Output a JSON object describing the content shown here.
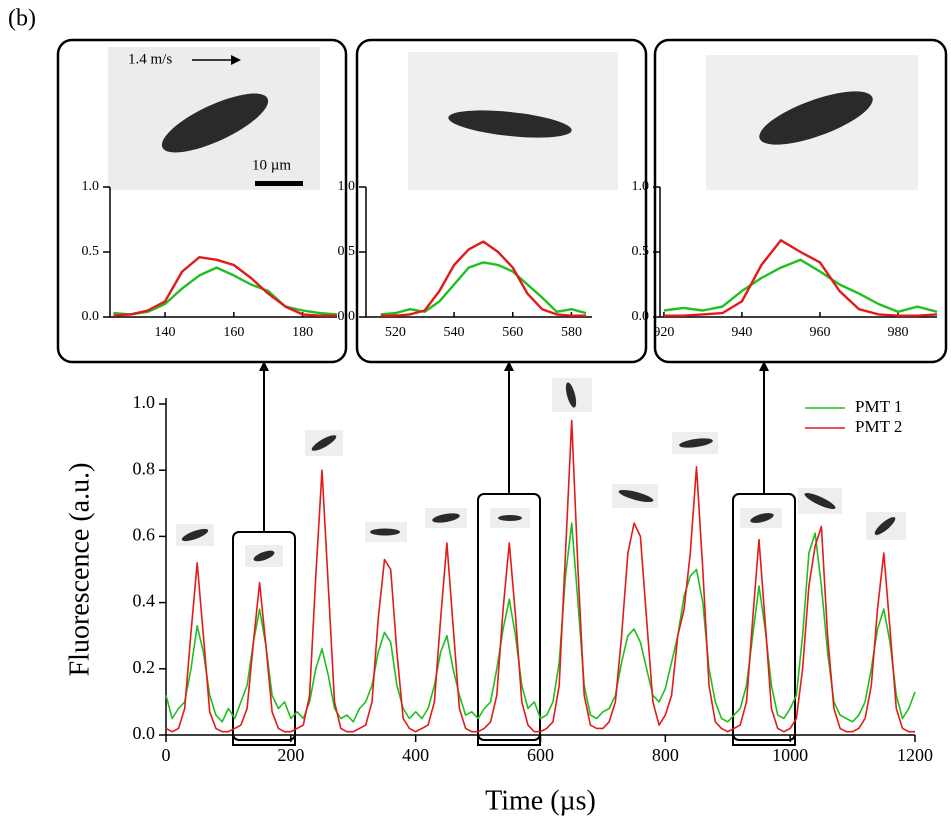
{
  "panel_label": "(b)",
  "chart_data": [
    {
      "type": "line",
      "x_label": "Time (µs)",
      "y_label": "Fluorescence (a.u.)",
      "xlim": [
        0,
        1200
      ],
      "xticks": [
        0,
        200,
        400,
        600,
        800,
        1000,
        1200
      ],
      "ylim": [
        0,
        1.0
      ],
      "yticks": [
        {
          "value": 0,
          "label": "0.0"
        },
        {
          "value": 0.2,
          "label": "0.2"
        },
        {
          "value": 0.4,
          "label": "0.4"
        },
        {
          "value": 0.6,
          "label": "0.6"
        },
        {
          "value": 0.8,
          "label": "0.8"
        },
        {
          "value": 1.0,
          "label": "1.0"
        }
      ],
      "legend": "upper right",
      "x": [
        0,
        10,
        20,
        30,
        40,
        50,
        60,
        70,
        80,
        90,
        100,
        110,
        120,
        130,
        140,
        150,
        160,
        170,
        180,
        190,
        200,
        210,
        220,
        230,
        240,
        250,
        260,
        270,
        280,
        290,
        300,
        310,
        320,
        330,
        340,
        350,
        360,
        370,
        380,
        390,
        400,
        410,
        420,
        430,
        440,
        450,
        460,
        470,
        480,
        490,
        500,
        510,
        520,
        530,
        540,
        550,
        560,
        570,
        580,
        590,
        600,
        610,
        620,
        630,
        640,
        650,
        660,
        670,
        680,
        690,
        700,
        710,
        720,
        730,
        740,
        750,
        760,
        770,
        780,
        790,
        800,
        810,
        820,
        830,
        840,
        850,
        860,
        870,
        880,
        890,
        900,
        910,
        920,
        930,
        940,
        950,
        960,
        970,
        980,
        990,
        1000,
        1010,
        1020,
        1030,
        1040,
        1050,
        1060,
        1070,
        1080,
        1090,
        1100,
        1110,
        1120,
        1130,
        1140,
        1150,
        1160,
        1170,
        1180,
        1190,
        1200
      ],
      "series": [
        {
          "name": "PMT 1",
          "color": "#1fbf1f",
          "values": [
            0.12,
            0.05,
            0.08,
            0.1,
            0.2,
            0.33,
            0.25,
            0.12,
            0.06,
            0.04,
            0.08,
            0.05,
            0.1,
            0.15,
            0.28,
            0.38,
            0.27,
            0.12,
            0.08,
            0.1,
            0.05,
            0.07,
            0.05,
            0.1,
            0.2,
            0.26,
            0.18,
            0.08,
            0.05,
            0.06,
            0.04,
            0.08,
            0.1,
            0.15,
            0.25,
            0.31,
            0.28,
            0.15,
            0.08,
            0.05,
            0.07,
            0.05,
            0.08,
            0.15,
            0.25,
            0.3,
            0.2,
            0.12,
            0.06,
            0.07,
            0.05,
            0.08,
            0.1,
            0.2,
            0.32,
            0.41,
            0.3,
            0.15,
            0.08,
            0.1,
            0.05,
            0.06,
            0.1,
            0.22,
            0.48,
            0.64,
            0.4,
            0.15,
            0.06,
            0.05,
            0.07,
            0.08,
            0.12,
            0.22,
            0.3,
            0.32,
            0.28,
            0.2,
            0.12,
            0.1,
            0.14,
            0.22,
            0.3,
            0.42,
            0.48,
            0.5,
            0.4,
            0.2,
            0.1,
            0.05,
            0.04,
            0.06,
            0.08,
            0.15,
            0.3,
            0.45,
            0.32,
            0.15,
            0.06,
            0.05,
            0.08,
            0.12,
            0.3,
            0.55,
            0.61,
            0.45,
            0.25,
            0.1,
            0.06,
            0.05,
            0.04,
            0.06,
            0.1,
            0.2,
            0.32,
            0.38,
            0.28,
            0.12,
            0.05,
            0.08,
            0.13
          ]
        },
        {
          "name": "PMT 2",
          "color": "#e31a1a",
          "values": [
            0.02,
            0.01,
            0.02,
            0.08,
            0.31,
            0.52,
            0.3,
            0.07,
            0.02,
            0.01,
            0.01,
            0.02,
            0.03,
            0.08,
            0.28,
            0.46,
            0.27,
            0.07,
            0.02,
            0.01,
            0.01,
            0.02,
            0.03,
            0.12,
            0.48,
            0.8,
            0.45,
            0.1,
            0.02,
            0.01,
            0.01,
            0.02,
            0.03,
            0.1,
            0.35,
            0.53,
            0.5,
            0.25,
            0.05,
            0.02,
            0.01,
            0.02,
            0.03,
            0.1,
            0.35,
            0.58,
            0.33,
            0.08,
            0.02,
            0.01,
            0.01,
            0.02,
            0.04,
            0.12,
            0.38,
            0.58,
            0.36,
            0.1,
            0.03,
            0.01,
            0.01,
            0.02,
            0.04,
            0.15,
            0.55,
            0.95,
            0.5,
            0.12,
            0.03,
            0.02,
            0.02,
            0.04,
            0.1,
            0.3,
            0.55,
            0.64,
            0.6,
            0.35,
            0.1,
            0.03,
            0.06,
            0.12,
            0.3,
            0.38,
            0.55,
            0.81,
            0.5,
            0.15,
            0.04,
            0.02,
            0.01,
            0.02,
            0.03,
            0.1,
            0.35,
            0.59,
            0.34,
            0.08,
            0.02,
            0.01,
            0.02,
            0.05,
            0.2,
            0.45,
            0.57,
            0.63,
            0.3,
            0.08,
            0.02,
            0.01,
            0.01,
            0.02,
            0.05,
            0.15,
            0.38,
            0.55,
            0.32,
            0.08,
            0.02,
            0.01,
            0.01
          ]
        }
      ]
    },
    {
      "type": "line",
      "annotations": [
        "1.4 m/s",
        "10 µm"
      ],
      "xlim": [
        124,
        190
      ],
      "xticks": [
        140,
        160,
        180
      ],
      "ylim": [
        0,
        1.0
      ],
      "yticks": [
        {
          "value": 0,
          "label": "0.0"
        },
        {
          "value": 0.5,
          "label": "0.5"
        },
        {
          "value": 1.0,
          "label": "1.0"
        }
      ],
      "x": [
        125,
        130,
        135,
        140,
        145,
        150,
        155,
        160,
        165,
        170,
        175,
        180,
        185,
        190
      ],
      "series": [
        {
          "color": "#1fbf1f",
          "values": [
            0.03,
            0.02,
            0.04,
            0.1,
            0.22,
            0.32,
            0.38,
            0.32,
            0.25,
            0.2,
            0.08,
            0.05,
            0.03,
            0.02
          ]
        },
        {
          "color": "#e31a1a",
          "values": [
            0.01,
            0.02,
            0.05,
            0.12,
            0.35,
            0.46,
            0.44,
            0.4,
            0.3,
            0.18,
            0.08,
            0.02,
            0.01,
            0.01
          ]
        }
      ]
    },
    {
      "type": "line",
      "xlim": [
        510,
        587
      ],
      "xticks": [
        520,
        540,
        560,
        580
      ],
      "ylim": [
        0,
        1.0
      ],
      "yticks": [
        {
          "value": 0,
          "label": "0.0"
        },
        {
          "value": 0.5,
          "label": "0.5"
        },
        {
          "value": 1.0,
          "label": "1.0"
        }
      ],
      "x": [
        515,
        520,
        525,
        530,
        535,
        540,
        545,
        550,
        555,
        560,
        565,
        570,
        575,
        580,
        585
      ],
      "series": [
        {
          "color": "#1fbf1f",
          "values": [
            0.02,
            0.03,
            0.06,
            0.04,
            0.12,
            0.25,
            0.38,
            0.42,
            0.4,
            0.35,
            0.25,
            0.15,
            0.04,
            0.06,
            0.03
          ]
        },
        {
          "color": "#e31a1a",
          "values": [
            0.01,
            0.01,
            0.02,
            0.05,
            0.2,
            0.4,
            0.52,
            0.58,
            0.5,
            0.38,
            0.18,
            0.06,
            0.02,
            0.01,
            0.01
          ]
        }
      ]
    },
    {
      "type": "line",
      "xlim": [
        919,
        990
      ],
      "xticks": [
        920,
        940,
        960,
        980
      ],
      "ylim": [
        0,
        1.0
      ],
      "yticks": [
        {
          "value": 0,
          "label": "0.0"
        },
        {
          "value": 0.5,
          "label": "0.5"
        },
        {
          "value": 1.0,
          "label": "1.0"
        }
      ],
      "x": [
        920,
        925,
        930,
        935,
        940,
        945,
        950,
        955,
        960,
        965,
        970,
        975,
        980,
        985,
        990
      ],
      "series": [
        {
          "color": "#1fbf1f",
          "values": [
            0.05,
            0.07,
            0.05,
            0.08,
            0.2,
            0.3,
            0.38,
            0.44,
            0.35,
            0.25,
            0.18,
            0.1,
            0.04,
            0.08,
            0.04
          ]
        },
        {
          "color": "#e31a1a",
          "values": [
            0.01,
            0.01,
            0.02,
            0.03,
            0.12,
            0.4,
            0.59,
            0.5,
            0.42,
            0.2,
            0.06,
            0.02,
            0.01,
            0.01,
            0.02
          ]
        }
      ]
    }
  ]
}
